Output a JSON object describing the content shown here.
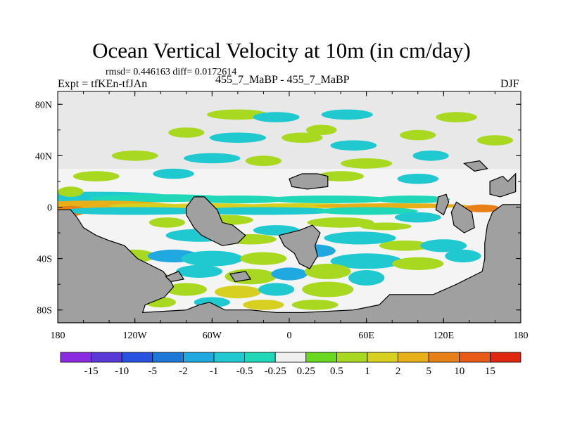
{
  "chart_data": {
    "type": "heatmap",
    "title": "Ocean Vertical Velocity at 10m (in cm/day)",
    "stats_line": "rmsd= 0.446163 diff= 0.0172614",
    "left_label": "Expt = tfKEn-tfJAn",
    "center_label": "455_7_MaBP - 455_7_MaBP",
    "right_label": "DJF",
    "x_ticks": [
      "180",
      "120W",
      "60W",
      "0",
      "60E",
      "120E",
      "180"
    ],
    "x_tick_values": [
      -180,
      -120,
      -60,
      0,
      60,
      120,
      180
    ],
    "y_ticks": [
      "80N",
      "40N",
      "0",
      "40S",
      "80S"
    ],
    "y_tick_values": [
      80,
      40,
      0,
      -40,
      -80
    ],
    "xlim": [
      -180,
      180
    ],
    "ylim": [
      -90,
      90
    ],
    "land_color": "#a0a0a0",
    "missing_color": "#e8e8e8",
    "colorbar": {
      "labels": [
        "-15",
        "-10",
        "-5",
        "-2",
        "-1",
        "-0.5",
        "-0.25",
        "0.25",
        "0.5",
        "1",
        "2",
        "5",
        "10",
        "15"
      ],
      "colors": [
        "#8a2be2",
        "#5a3ad6",
        "#2a52e0",
        "#1e78d8",
        "#20a8e0",
        "#20c8d0",
        "#20d8b8",
        "#f0f0f0",
        "#6ad81e",
        "#a8d820",
        "#d8d020",
        "#e8b018",
        "#e88018",
        "#e85a18",
        "#e02810"
      ]
    },
    "land_polygons": [
      [
        [
          -180,
          -90
        ],
        [
          -180,
          -2
        ],
        [
          -170,
          -2
        ],
        [
          -165,
          -8
        ],
        [
          -160,
          -16
        ],
        [
          -150,
          -22
        ],
        [
          -140,
          -26
        ],
        [
          -128,
          -30
        ],
        [
          -118,
          -40
        ],
        [
          -110,
          -44
        ],
        [
          -98,
          -50
        ],
        [
          -92,
          -58
        ],
        [
          -90,
          -62
        ],
        [
          -97,
          -70
        ],
        [
          -112,
          -76
        ],
        [
          -114,
          -82
        ],
        [
          -80,
          -80
        ],
        [
          -70,
          -76
        ],
        [
          -62,
          -74
        ],
        [
          -50,
          -80
        ],
        [
          -30,
          -80
        ],
        [
          -10,
          -82
        ],
        [
          10,
          -82
        ],
        [
          50,
          -80
        ],
        [
          70,
          -76
        ],
        [
          78,
          -68
        ],
        [
          112,
          -68
        ],
        [
          130,
          -60
        ],
        [
          150,
          -50
        ],
        [
          152,
          -40
        ],
        [
          152,
          -28
        ],
        [
          154,
          -14
        ],
        [
          158,
          -4
        ],
        [
          166,
          2
        ],
        [
          180,
          2
        ],
        [
          180,
          -90
        ]
      ],
      [
        [
          -80,
          0
        ],
        [
          -74,
          8
        ],
        [
          -66,
          8
        ],
        [
          -56,
          -2
        ],
        [
          -52,
          -12
        ],
        [
          -44,
          -14
        ],
        [
          -34,
          -22
        ],
        [
          -40,
          -28
        ],
        [
          -52,
          -30
        ],
        [
          -60,
          -26
        ],
        [
          -68,
          -22
        ],
        [
          -74,
          -16
        ],
        [
          -80,
          -6
        ]
      ],
      [
        [
          -8,
          -22
        ],
        [
          8,
          -18
        ],
        [
          18,
          -14
        ],
        [
          24,
          -20
        ],
        [
          20,
          -30
        ],
        [
          22,
          -38
        ],
        [
          16,
          -48
        ],
        [
          8,
          -44
        ],
        [
          4,
          -36
        ],
        [
          -4,
          -30
        ]
      ],
      [
        [
          130,
          4
        ],
        [
          136,
          0
        ],
        [
          142,
          -4
        ],
        [
          144,
          -16
        ],
        [
          136,
          -20
        ],
        [
          128,
          -14
        ],
        [
          126,
          -4
        ]
      ],
      [
        [
          -46,
          -52
        ],
        [
          -34,
          -50
        ],
        [
          -30,
          -56
        ],
        [
          -42,
          -58
        ]
      ],
      [
        [
          -96,
          -54
        ],
        [
          -86,
          -50
        ],
        [
          -82,
          -56
        ],
        [
          -92,
          -58
        ]
      ],
      [
        [
          116,
          8
        ],
        [
          122,
          10
        ],
        [
          124,
          4
        ],
        [
          120,
          -6
        ],
        [
          114,
          -2
        ]
      ],
      [
        [
          0,
          22
        ],
        [
          10,
          26
        ],
        [
          22,
          26
        ],
        [
          30,
          24
        ],
        [
          30,
          16
        ],
        [
          14,
          14
        ],
        [
          2,
          16
        ]
      ],
      [
        [
          136,
          34
        ],
        [
          148,
          36
        ],
        [
          154,
          30
        ],
        [
          144,
          28
        ]
      ],
      [
        [
          156,
          20
        ],
        [
          166,
          24
        ],
        [
          170,
          20
        ],
        [
          176,
          26
        ],
        [
          176,
          12
        ],
        [
          164,
          8
        ],
        [
          156,
          10
        ]
      ]
    ],
    "field_blobs": [
      {
        "x": -150,
        "y": 8,
        "w": 60,
        "h": 4,
        "v": -0.75
      },
      {
        "x": -100,
        "y": 7,
        "w": 55,
        "h": 3,
        "v": -0.35
      },
      {
        "x": -40,
        "y": 6,
        "w": 40,
        "h": 3,
        "v": -0.35
      },
      {
        "x": 30,
        "y": 6,
        "w": 50,
        "h": 3,
        "v": -0.35
      },
      {
        "x": 95,
        "y": 6,
        "w": 30,
        "h": 3,
        "v": -0.35
      },
      {
        "x": -150,
        "y": 2,
        "w": 55,
        "h": 3,
        "v": 3
      },
      {
        "x": -110,
        "y": 1,
        "w": 30,
        "h": 2,
        "v": 1.5
      },
      {
        "x": -60,
        "y": 1,
        "w": 40,
        "h": 2,
        "v": 1.5
      },
      {
        "x": 10,
        "y": 1,
        "w": 50,
        "h": 2,
        "v": 1.5
      },
      {
        "x": 80,
        "y": 1,
        "w": 60,
        "h": 2,
        "v": 2.5
      },
      {
        "x": 150,
        "y": -1,
        "w": 14,
        "h": 3,
        "v": 8
      },
      {
        "x": -170,
        "y": -3,
        "w": 12,
        "h": 4,
        "v": 7
      },
      {
        "x": -120,
        "y": -3,
        "w": 60,
        "h": 3,
        "v": -0.75
      },
      {
        "x": -20,
        "y": -3,
        "w": 60,
        "h": 3,
        "v": -0.75
      },
      {
        "x": 60,
        "y": -3,
        "w": 40,
        "h": 3,
        "v": -0.35
      },
      {
        "x": -50,
        "y": -10,
        "w": 22,
        "h": 4,
        "v": 0.7
      },
      {
        "x": -95,
        "y": -12,
        "w": 14,
        "h": 4,
        "v": 0.7
      },
      {
        "x": -10,
        "y": -18,
        "w": 18,
        "h": 4,
        "v": -0.75
      },
      {
        "x": 40,
        "y": -12,
        "w": 26,
        "h": 4,
        "v": 0.7
      },
      {
        "x": 75,
        "y": -15,
        "w": 20,
        "h": 3,
        "v": 0.7
      },
      {
        "x": 100,
        "y": -8,
        "w": 18,
        "h": 4,
        "v": -0.75
      },
      {
        "x": -70,
        "y": -22,
        "w": 26,
        "h": 5,
        "v": -0.75
      },
      {
        "x": -30,
        "y": -25,
        "w": 20,
        "h": 4,
        "v": 0.7
      },
      {
        "x": 55,
        "y": -24,
        "w": 28,
        "h": 5,
        "v": -0.75
      },
      {
        "x": 90,
        "y": -30,
        "w": 20,
        "h": 4,
        "v": 0.7
      },
      {
        "x": 120,
        "y": -30,
        "w": 18,
        "h": 5,
        "v": -0.75
      },
      {
        "x": -120,
        "y": -38,
        "w": 16,
        "h": 5,
        "v": 0.7
      },
      {
        "x": -90,
        "y": -38,
        "w": 20,
        "h": 5,
        "v": -1.5
      },
      {
        "x": -60,
        "y": -40,
        "w": 24,
        "h": 6,
        "v": -0.75
      },
      {
        "x": -20,
        "y": -40,
        "w": 18,
        "h": 5,
        "v": 0.7
      },
      {
        "x": 20,
        "y": -34,
        "w": 16,
        "h": 5,
        "v": -1.5
      },
      {
        "x": 60,
        "y": -42,
        "w": 28,
        "h": 6,
        "v": -0.75
      },
      {
        "x": 100,
        "y": -44,
        "w": 20,
        "h": 5,
        "v": 0.7
      },
      {
        "x": 135,
        "y": -38,
        "w": 14,
        "h": 5,
        "v": -0.75
      },
      {
        "x": -110,
        "y": -54,
        "w": 16,
        "h": 5,
        "v": 1.5
      },
      {
        "x": -70,
        "y": -50,
        "w": 18,
        "h": 5,
        "v": -0.75
      },
      {
        "x": -30,
        "y": -54,
        "w": 20,
        "h": 6,
        "v": 0.7
      },
      {
        "x": 0,
        "y": -52,
        "w": 14,
        "h": 5,
        "v": -1.5
      },
      {
        "x": 30,
        "y": -50,
        "w": 18,
        "h": 6,
        "v": 0.7
      },
      {
        "x": 60,
        "y": -55,
        "w": 14,
        "h": 6,
        "v": -0.75
      },
      {
        "x": -80,
        "y": -64,
        "w": 16,
        "h": 5,
        "v": 0.7
      },
      {
        "x": -40,
        "y": -66,
        "w": 18,
        "h": 5,
        "v": 1.5
      },
      {
        "x": -10,
        "y": -64,
        "w": 14,
        "h": 5,
        "v": -0.75
      },
      {
        "x": 30,
        "y": -64,
        "w": 20,
        "h": 6,
        "v": 0.7
      },
      {
        "x": -100,
        "y": -74,
        "w": 12,
        "h": 4,
        "v": 0.7
      },
      {
        "x": -60,
        "y": -74,
        "w": 14,
        "h": 4,
        "v": -0.75
      },
      {
        "x": -20,
        "y": -76,
        "w": 16,
        "h": 4,
        "v": 1.5
      },
      {
        "x": 20,
        "y": -76,
        "w": 18,
        "h": 4,
        "v": 0.7
      },
      {
        "x": -20,
        "y": -85,
        "w": 16,
        "h": 2,
        "v": 4
      },
      {
        "x": 40,
        "y": -84,
        "w": 10,
        "h": 2,
        "v": 1.5
      },
      {
        "x": -50,
        "y": -83,
        "w": 10,
        "h": 2,
        "v": -0.75
      },
      {
        "x": -40,
        "y": 72,
        "w": 24,
        "h": 4,
        "v": 0.7
      },
      {
        "x": -10,
        "y": 70,
        "w": 18,
        "h": 4,
        "v": -0.75
      },
      {
        "x": 45,
        "y": 72,
        "w": 20,
        "h": 4,
        "v": -0.75
      },
      {
        "x": 25,
        "y": 60,
        "w": 12,
        "h": 4,
        "v": 0.7
      },
      {
        "x": -80,
        "y": 58,
        "w": 14,
        "h": 4,
        "v": 0.7
      },
      {
        "x": -40,
        "y": 54,
        "w": 22,
        "h": 4,
        "v": -0.75
      },
      {
        "x": 10,
        "y": 54,
        "w": 16,
        "h": 4,
        "v": 0.7
      },
      {
        "x": 50,
        "y": 48,
        "w": 18,
        "h": 4,
        "v": -0.75
      },
      {
        "x": 100,
        "y": 56,
        "w": 14,
        "h": 4,
        "v": 0.7
      },
      {
        "x": 130,
        "y": 70,
        "w": 16,
        "h": 4,
        "v": 0.7
      },
      {
        "x": -120,
        "y": 40,
        "w": 18,
        "h": 4,
        "v": 0.7
      },
      {
        "x": -60,
        "y": 38,
        "w": 22,
        "h": 4,
        "v": -0.75
      },
      {
        "x": -20,
        "y": 36,
        "w": 14,
        "h": 4,
        "v": 0.7
      },
      {
        "x": 60,
        "y": 34,
        "w": 20,
        "h": 4,
        "v": 0.7
      },
      {
        "x": 110,
        "y": 40,
        "w": 14,
        "h": 4,
        "v": -0.75
      },
      {
        "x": 160,
        "y": 52,
        "w": 14,
        "h": 4,
        "v": 0.7
      },
      {
        "x": -150,
        "y": 24,
        "w": 18,
        "h": 4,
        "v": 0.7
      },
      {
        "x": -90,
        "y": 26,
        "w": 16,
        "h": 4,
        "v": -0.75
      },
      {
        "x": 40,
        "y": 24,
        "w": 18,
        "h": 4,
        "v": 0.7
      },
      {
        "x": 100,
        "y": 22,
        "w": 16,
        "h": 4,
        "v": -0.75
      },
      {
        "x": -170,
        "y": 12,
        "w": 10,
        "h": 4,
        "v": 0.7
      },
      {
        "x": 170,
        "y": -10,
        "w": 8,
        "h": 6,
        "v": -0.75
      }
    ]
  }
}
